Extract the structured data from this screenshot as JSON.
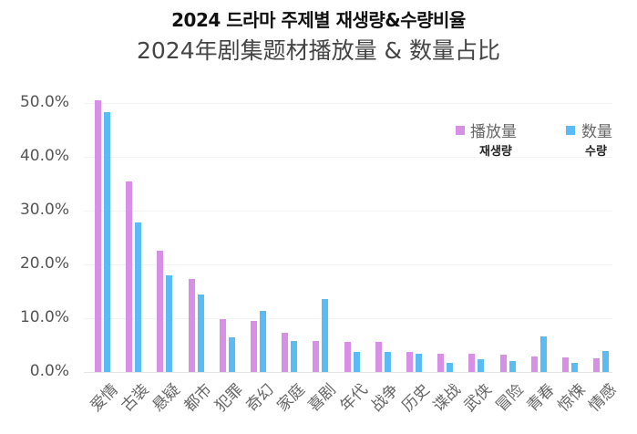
{
  "title_ko": "2024 드라마 주제별 재생량&수량비율",
  "title_zh": "2024年剧集题材播放量 & 数量占比",
  "legend": [
    {
      "label_zh": "播放量",
      "label_ko": "재생량",
      "color": "#d88fe6"
    },
    {
      "label_zh": "数量",
      "label_ko": "수량",
      "color": "#5bbcf5"
    }
  ],
  "y_ticks": [
    "50.0%",
    "40.0%",
    "30.0%",
    "20.0%",
    "10.0%",
    "0.0%"
  ],
  "chart_data": {
    "type": "bar",
    "title": "2024 드라마 주제별 재생량&수량비율 / 2024年剧集题材播放量 & 数量占比",
    "xlabel": "",
    "ylabel": "",
    "ylim": [
      0,
      50
    ],
    "grid": true,
    "legend_position": "top-right",
    "categories": [
      "爱情",
      "古装",
      "悬疑",
      "都市",
      "犯罪",
      "奇幻",
      "家庭",
      "喜剧",
      "年代",
      "战争",
      "历史",
      "谍战",
      "武侠",
      "冒险",
      "青春",
      "惊悚",
      "情感"
    ],
    "series": [
      {
        "name": "播放量 (재생량)",
        "color": "#d88fe6",
        "values": [
          50.5,
          35.4,
          22.5,
          17.3,
          9.8,
          9.5,
          7.3,
          5.8,
          5.6,
          5.6,
          3.7,
          3.4,
          3.4,
          3.2,
          2.9,
          2.7,
          2.5
        ]
      },
      {
        "name": "数量 (수량)",
        "color": "#5bbcf5",
        "values": [
          48.3,
          27.8,
          18.0,
          14.4,
          6.4,
          11.3,
          5.8,
          13.6,
          3.7,
          3.7,
          3.4,
          1.7,
          2.4,
          2.0,
          6.6,
          1.7,
          3.9
        ]
      }
    ]
  }
}
